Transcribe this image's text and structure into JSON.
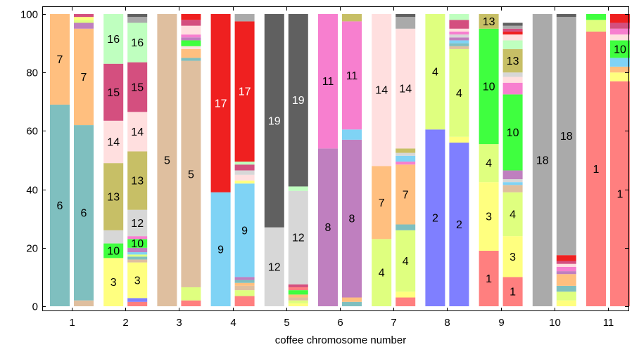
{
  "chart_data": {
    "type": "bar",
    "stacked": true,
    "stack_unit": "percent",
    "xlabel": "coffee chromosome number",
    "ylabel": "",
    "ylim": [
      0,
      100
    ],
    "yticks": [
      "0",
      "20",
      "40",
      "60",
      "80",
      "100"
    ],
    "categories": [
      "1",
      "2",
      "3",
      "4",
      "5",
      "6",
      "7",
      "8",
      "9",
      "10",
      "11"
    ],
    "grid": false,
    "bars_per_category": 2,
    "colors": {
      "1": "#ff7f7f",
      "2": "#7f7fff",
      "3": "#ffff7f",
      "4": "#dfff7f",
      "5": "#dfbf9f",
      "6": "#7fbfbf",
      "7": "#ffbf7f",
      "8": "#bf7fbf",
      "9": "#7fd3f5",
      "10": "#3fff3f",
      "11": "#f77fcf",
      "12": "#d7d7d7",
      "13": "#c7bf66",
      "14": "#ffdfdf",
      "15": "#d44f7f",
      "16": "#bfffbf",
      "17": "#ef2020",
      "18": "#aaaaaa",
      "19": "#606060"
    },
    "bars": [
      {
        "category": "1",
        "segments": [
          {
            "id": "6",
            "value": 69,
            "label": "6"
          },
          {
            "id": "7",
            "value": 31,
            "label": "7"
          }
        ]
      },
      {
        "category": "1",
        "segments": [
          {
            "id": "5",
            "value": 2
          },
          {
            "id": "6",
            "value": 60,
            "label": "6"
          },
          {
            "id": "7",
            "value": 33,
            "label": "7"
          },
          {
            "id": "8",
            "value": 2
          },
          {
            "id": "4",
            "value": 1
          },
          {
            "id": "3",
            "value": 1
          },
          {
            "id": "15",
            "value": 1
          }
        ]
      },
      {
        "category": "2",
        "segments": [
          {
            "id": "3",
            "value": 16.5,
            "label": "3"
          },
          {
            "id": "10",
            "value": 5,
            "label": "10"
          },
          {
            "id": "12",
            "value": 4.5
          },
          {
            "id": "13",
            "value": 23,
            "label": "13"
          },
          {
            "id": "14",
            "value": 14.5,
            "label": "14"
          },
          {
            "id": "15",
            "value": 19.5,
            "label": "15"
          },
          {
            "id": "16",
            "value": 17,
            "label": "16"
          }
        ]
      },
      {
        "category": "2",
        "segments": [
          {
            "id": "1",
            "value": 1.5
          },
          {
            "id": "2",
            "value": 1.3
          },
          {
            "id": "3",
            "value": 12.2,
            "label": "3"
          },
          {
            "id": "5",
            "value": 1
          },
          {
            "id": "6",
            "value": 1
          },
          {
            "id": "4",
            "value": 0.7
          },
          {
            "id": "9",
            "value": 0.8
          },
          {
            "id": "8",
            "value": 1.5
          },
          {
            "id": "10",
            "value": 3,
            "label": "10"
          },
          {
            "id": "11",
            "value": 1
          },
          {
            "id": "12",
            "value": 9,
            "label": "12"
          },
          {
            "id": "13",
            "value": 20,
            "label": "13"
          },
          {
            "id": "14",
            "value": 13.5,
            "label": "14"
          },
          {
            "id": "15",
            "value": 17,
            "label": "15"
          },
          {
            "id": "16",
            "value": 13.5,
            "label": "16"
          },
          {
            "id": "18",
            "value": 2
          },
          {
            "id": "19",
            "value": 1
          }
        ]
      },
      {
        "category": "3",
        "segments": [
          {
            "id": "5",
            "value": 100,
            "label": "5"
          }
        ]
      },
      {
        "category": "3",
        "segments": [
          {
            "id": "1",
            "value": 2
          },
          {
            "id": "4",
            "value": 4.5
          },
          {
            "id": "5",
            "value": 77.5,
            "label": "5"
          },
          {
            "id": "6",
            "value": 1
          },
          {
            "id": "7",
            "value": 3
          },
          {
            "id": "14",
            "value": 1
          },
          {
            "id": "10",
            "value": 2
          },
          {
            "id": "8",
            "value": 1
          },
          {
            "id": "11",
            "value": 1
          },
          {
            "id": "14",
            "value": 3
          },
          {
            "id": "15",
            "value": 2
          },
          {
            "id": "17",
            "value": 2
          }
        ]
      },
      {
        "category": "4",
        "segments": [
          {
            "id": "9",
            "value": 39,
            "label": "9"
          },
          {
            "id": "17",
            "value": 61,
            "label": "17"
          }
        ]
      },
      {
        "category": "4",
        "segments": [
          {
            "id": "1",
            "value": 3.5
          },
          {
            "id": "4",
            "value": 2
          },
          {
            "id": "5",
            "value": 1.5
          },
          {
            "id": "7",
            "value": 1
          },
          {
            "id": "6",
            "value": 1
          },
          {
            "id": "8",
            "value": 1
          },
          {
            "id": "9",
            "value": 32,
            "label": "9"
          },
          {
            "id": "3",
            "value": 1
          },
          {
            "id": "14",
            "value": 2
          },
          {
            "id": "12",
            "value": 1.5
          },
          {
            "id": "15",
            "value": 2
          },
          {
            "id": "16",
            "value": 1
          },
          {
            "id": "17",
            "value": 48,
            "label": "17"
          },
          {
            "id": "18",
            "value": 2.5
          }
        ]
      },
      {
        "category": "5",
        "segments": [
          {
            "id": "12",
            "value": 27,
            "label": "12"
          },
          {
            "id": "19",
            "value": 73,
            "label": "19"
          }
        ]
      },
      {
        "category": "5",
        "segments": [
          {
            "id": "3",
            "value": 1
          },
          {
            "id": "4",
            "value": 1
          },
          {
            "id": "5",
            "value": 1
          },
          {
            "id": "7",
            "value": 1
          },
          {
            "id": "10",
            "value": 1.5
          },
          {
            "id": "1",
            "value": 1
          },
          {
            "id": "15",
            "value": 1
          },
          {
            "id": "12",
            "value": 32,
            "label": "12"
          },
          {
            "id": "16",
            "value": 1.5
          },
          {
            "id": "19",
            "value": 59,
            "label": "19"
          }
        ]
      },
      {
        "category": "6",
        "segments": [
          {
            "id": "8",
            "value": 54,
            "label": "8"
          },
          {
            "id": "11",
            "value": 46,
            "label": "11"
          }
        ]
      },
      {
        "category": "6",
        "segments": [
          {
            "id": "6",
            "value": 1.5
          },
          {
            "id": "7",
            "value": 1.5
          },
          {
            "id": "8",
            "value": 54,
            "label": "8"
          },
          {
            "id": "9",
            "value": 3.5
          },
          {
            "id": "11",
            "value": 37,
            "label": "11"
          },
          {
            "id": "13",
            "value": 2.5
          }
        ]
      },
      {
        "category": "7",
        "segments": [
          {
            "id": "4",
            "value": 23,
            "label": "4"
          },
          {
            "id": "7",
            "value": 25,
            "label": "7"
          },
          {
            "id": "14",
            "value": 52,
            "label": "14"
          }
        ]
      },
      {
        "category": "7",
        "segments": [
          {
            "id": "1",
            "value": 3
          },
          {
            "id": "3",
            "value": 2
          },
          {
            "id": "4",
            "value": 21,
            "label": "4"
          },
          {
            "id": "6",
            "value": 2
          },
          {
            "id": "7",
            "value": 20.5,
            "label": "7"
          },
          {
            "id": "11",
            "value": 1
          },
          {
            "id": "9",
            "value": 2
          },
          {
            "id": "12",
            "value": 1
          },
          {
            "id": "13",
            "value": 1.5
          },
          {
            "id": "14",
            "value": 41,
            "label": "14"
          },
          {
            "id": "18",
            "value": 4
          },
          {
            "id": "19",
            "value": 1
          }
        ]
      },
      {
        "category": "8",
        "segments": [
          {
            "id": "2",
            "value": 60.5,
            "label": "2"
          },
          {
            "id": "4",
            "value": 39.5,
            "label": "4"
          }
        ]
      },
      {
        "category": "8",
        "segments": [
          {
            "id": "2",
            "value": 56,
            "label": "2"
          },
          {
            "id": "3",
            "value": 2
          },
          {
            "id": "4",
            "value": 30,
            "label": "4"
          },
          {
            "id": "5",
            "value": 1
          },
          {
            "id": "6",
            "value": 1
          },
          {
            "id": "9",
            "value": 1
          },
          {
            "id": "8",
            "value": 1
          },
          {
            "id": "12",
            "value": 1
          },
          {
            "id": "11",
            "value": 1
          },
          {
            "id": "14",
            "value": 1
          },
          {
            "id": "15",
            "value": 3
          },
          {
            "id": "16",
            "value": 2
          }
        ]
      },
      {
        "category": "9",
        "segments": [
          {
            "id": "1",
            "value": 19,
            "label": "1"
          },
          {
            "id": "3",
            "value": 23.5,
            "label": "3"
          },
          {
            "id": "4",
            "value": 13,
            "label": "4"
          },
          {
            "id": "10",
            "value": 39.5,
            "label": "10"
          },
          {
            "id": "13",
            "value": 5,
            "label": "13"
          }
        ]
      },
      {
        "category": "9",
        "segments": [
          {
            "id": "1",
            "value": 10,
            "label": "1"
          },
          {
            "id": "3",
            "value": 14,
            "label": "3"
          },
          {
            "id": "4",
            "value": 15,
            "label": "4"
          },
          {
            "id": "5",
            "value": 2.5
          },
          {
            "id": "9",
            "value": 1
          },
          {
            "id": "12",
            "value": 1
          },
          {
            "id": "8",
            "value": 3
          },
          {
            "id": "10",
            "value": 26,
            "label": "10"
          },
          {
            "id": "11",
            "value": 4
          },
          {
            "id": "14",
            "value": 2
          },
          {
            "id": "12",
            "value": 1.5
          },
          {
            "id": "13",
            "value": 8,
            "label": "13"
          },
          {
            "id": "16",
            "value": 3
          },
          {
            "id": "14",
            "value": 2
          },
          {
            "id": "17",
            "value": 1
          },
          {
            "id": "15",
            "value": 1
          },
          {
            "id": "18",
            "value": 1
          },
          {
            "id": "19",
            "value": 1
          }
        ]
      },
      {
        "category": "10",
        "segments": [
          {
            "id": "18",
            "value": 100,
            "label": "18"
          }
        ]
      },
      {
        "category": "10",
        "segments": [
          {
            "id": "3",
            "value": 2
          },
          {
            "id": "4",
            "value": 3
          },
          {
            "id": "6",
            "value": 2
          },
          {
            "id": "7",
            "value": 4
          },
          {
            "id": "8",
            "value": 1
          },
          {
            "id": "11",
            "value": 1.5
          },
          {
            "id": "14",
            "value": 1
          },
          {
            "id": "15",
            "value": 1
          },
          {
            "id": "17",
            "value": 2
          },
          {
            "id": "18",
            "value": 81.5,
            "label": "18"
          },
          {
            "id": "19",
            "value": 1
          }
        ]
      },
      {
        "category": "11",
        "segments": [
          {
            "id": "1",
            "value": 94,
            "label": "1"
          },
          {
            "id": "4",
            "value": 4
          },
          {
            "id": "10",
            "value": 2
          }
        ]
      },
      {
        "category": "11",
        "segments": [
          {
            "id": "1",
            "value": 77,
            "label": "1"
          },
          {
            "id": "3",
            "value": 3
          },
          {
            "id": "7",
            "value": 2
          },
          {
            "id": "9",
            "value": 3
          },
          {
            "id": "10",
            "value": 6,
            "label": "10"
          },
          {
            "id": "14",
            "value": 2
          },
          {
            "id": "11",
            "value": 2
          },
          {
            "id": "15",
            "value": 2
          },
          {
            "id": "17",
            "value": 3
          }
        ]
      }
    ]
  }
}
